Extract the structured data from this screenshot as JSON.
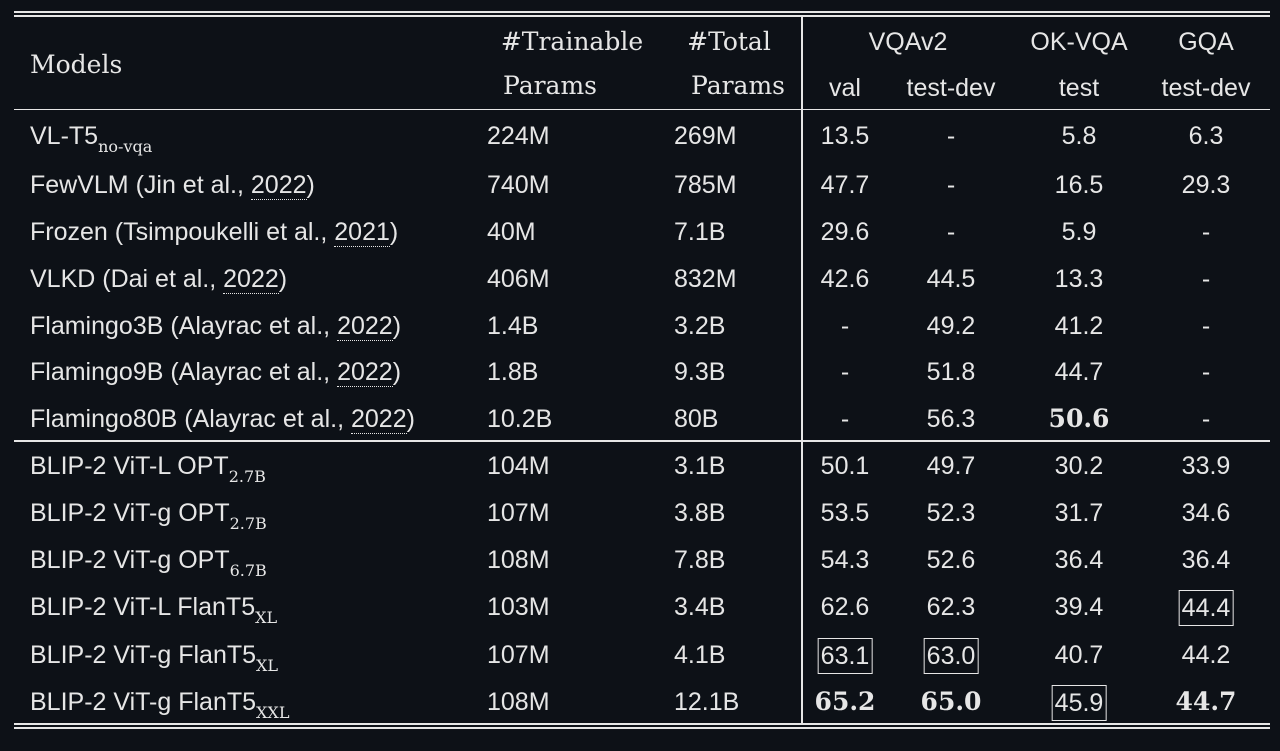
{
  "header": {
    "models": "Models",
    "trainable_1": "#Trainable",
    "trainable_2": "Params",
    "total_1": "#Total",
    "total_2": "Params",
    "vqav2": "VQAv2",
    "okvqa": "OK-VQA",
    "gqa": "GQA",
    "val": "val",
    "testdev_vqa": "test-dev",
    "test_ok": "test",
    "testdev_gqa": "test-dev"
  },
  "rows": [
    {
      "name": "VL-T5",
      "sub": "no-vqa",
      "pre": "",
      "cite": "",
      "post": "",
      "trainable": "224M",
      "total": "269M",
      "val": "13.5",
      "testdev": "-",
      "okvqa": "5.8",
      "gqa": "6.3"
    },
    {
      "name": "FewVLM (Jin et al., ",
      "sub": "",
      "pre": "",
      "cite": "2022",
      "post": ")",
      "trainable": "740M",
      "total": "785M",
      "val": "47.7",
      "testdev": "-",
      "okvqa": "16.5",
      "gqa": "29.3"
    },
    {
      "name": "Frozen (Tsimpoukelli et al., ",
      "sub": "",
      "pre": "",
      "cite": "2021",
      "post": ")",
      "trainable": "40M",
      "total": "7.1B",
      "val": "29.6",
      "testdev": "-",
      "okvqa": "5.9",
      "gqa": "-"
    },
    {
      "name": "VLKD (Dai et al., ",
      "sub": "",
      "pre": "",
      "cite": "2022",
      "post": ")",
      "trainable": "406M",
      "total": "832M",
      "val": "42.6",
      "testdev": "44.5",
      "okvqa": "13.3",
      "gqa": "-"
    },
    {
      "name": "Flamingo3B (Alayrac et al., ",
      "sub": "",
      "pre": "",
      "cite": "2022",
      "post": ")",
      "trainable": "1.4B",
      "total": "3.2B",
      "val": "-",
      "testdev": "49.2",
      "okvqa": "41.2",
      "gqa": "-"
    },
    {
      "name": "Flamingo9B (Alayrac et al., ",
      "sub": "",
      "pre": "",
      "cite": "2022",
      "post": ")",
      "trainable": "1.8B",
      "total": "9.3B",
      "val": "-",
      "testdev": "51.8",
      "okvqa": "44.7",
      "gqa": "-"
    },
    {
      "name": "Flamingo80B (Alayrac et al., ",
      "sub": "",
      "pre": "",
      "cite": "2022",
      "post": ")",
      "trainable": "10.2B",
      "total": "80B",
      "val": "-",
      "testdev": "56.3",
      "okvqa": "50.6",
      "gqa": "-"
    },
    {
      "name": "BLIP-2 ViT-L OPT",
      "sub": "2.7B",
      "pre": "",
      "cite": "",
      "post": "",
      "trainable": "104M",
      "total": "3.1B",
      "val": "50.1",
      "testdev": "49.7",
      "okvqa": "30.2",
      "gqa": "33.9"
    },
    {
      "name": "BLIP-2 ViT-g OPT",
      "sub": "2.7B",
      "pre": "",
      "cite": "",
      "post": "",
      "trainable": "107M",
      "total": "3.8B",
      "val": "53.5",
      "testdev": "52.3",
      "okvqa": "31.7",
      "gqa": "34.6"
    },
    {
      "name": "BLIP-2 ViT-g OPT",
      "sub": "6.7B",
      "pre": "",
      "cite": "",
      "post": "",
      "trainable": "108M",
      "total": "7.8B",
      "val": "54.3",
      "testdev": "52.6",
      "okvqa": "36.4",
      "gqa": "36.4"
    },
    {
      "name": "BLIP-2 ViT-L FlanT5",
      "sub": "XL",
      "pre": "",
      "cite": "",
      "post": "",
      "trainable": "103M",
      "total": "3.4B",
      "val": "62.6",
      "testdev": "62.3",
      "okvqa": "39.4",
      "gqa": "44.4"
    },
    {
      "name": "BLIP-2 ViT-g FlanT5",
      "sub": "XL",
      "pre": "",
      "cite": "",
      "post": "",
      "trainable": "107M",
      "total": "4.1B",
      "val": "63.1",
      "testdev": "63.0",
      "okvqa": "40.7",
      "gqa": "44.2"
    },
    {
      "name": "BLIP-2 ViT-g FlanT5",
      "sub": "XXL",
      "pre": "",
      "cite": "",
      "post": "",
      "trainable": "108M",
      "total": "12.1B",
      "val": "65.2",
      "testdev": "65.0",
      "okvqa": "45.9",
      "gqa": "44.7"
    }
  ],
  "styles": {
    "bold": [
      "6.okvqa",
      "12.val",
      "12.testdev",
      "12.gqa"
    ],
    "boxed": [
      "10.gqa",
      "11.val",
      "11.testdev",
      "12.okvqa"
    ]
  }
}
